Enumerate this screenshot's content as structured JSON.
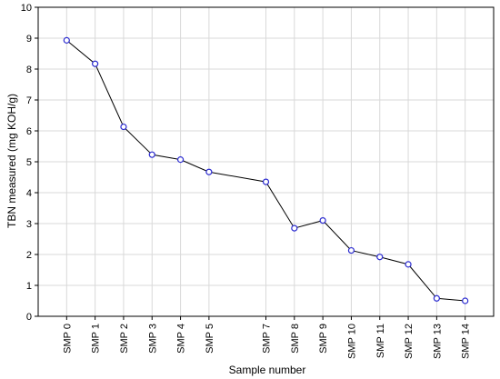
{
  "chart_data": {
    "type": "line",
    "xlabel": "Sample number",
    "ylabel": "TBN measured (mg KOH/g)",
    "ylim": [
      0,
      10
    ],
    "y_ticks": [
      "0",
      "1",
      "2",
      "3",
      "4",
      "5",
      "6",
      "7",
      "8",
      "9",
      "10"
    ],
    "grid": true,
    "categories": [
      "SMP 0",
      "SMP 1",
      "SMP 2",
      "SMP 3",
      "SMP 4",
      "SMP 5",
      "SMP 7",
      "SMP 8",
      "SMP 9",
      "SMP 10",
      "SMP 11",
      "SMP 12",
      "SMP 13",
      "SMP 14"
    ],
    "x": [
      0,
      1,
      2,
      3,
      4,
      5,
      7,
      8,
      9,
      10,
      11,
      12,
      13,
      14
    ],
    "series": [
      {
        "values": [
          8.93,
          8.17,
          6.13,
          5.23,
          5.07,
          4.67,
          4.35,
          2.85,
          3.1,
          2.13,
          1.92,
          1.68,
          0.58,
          0.5
        ],
        "line_color": "#000000",
        "marker_color": "#2b2bd0"
      }
    ],
    "colors": {
      "grid": "#d9d9d9",
      "axis": "#000000"
    }
  }
}
